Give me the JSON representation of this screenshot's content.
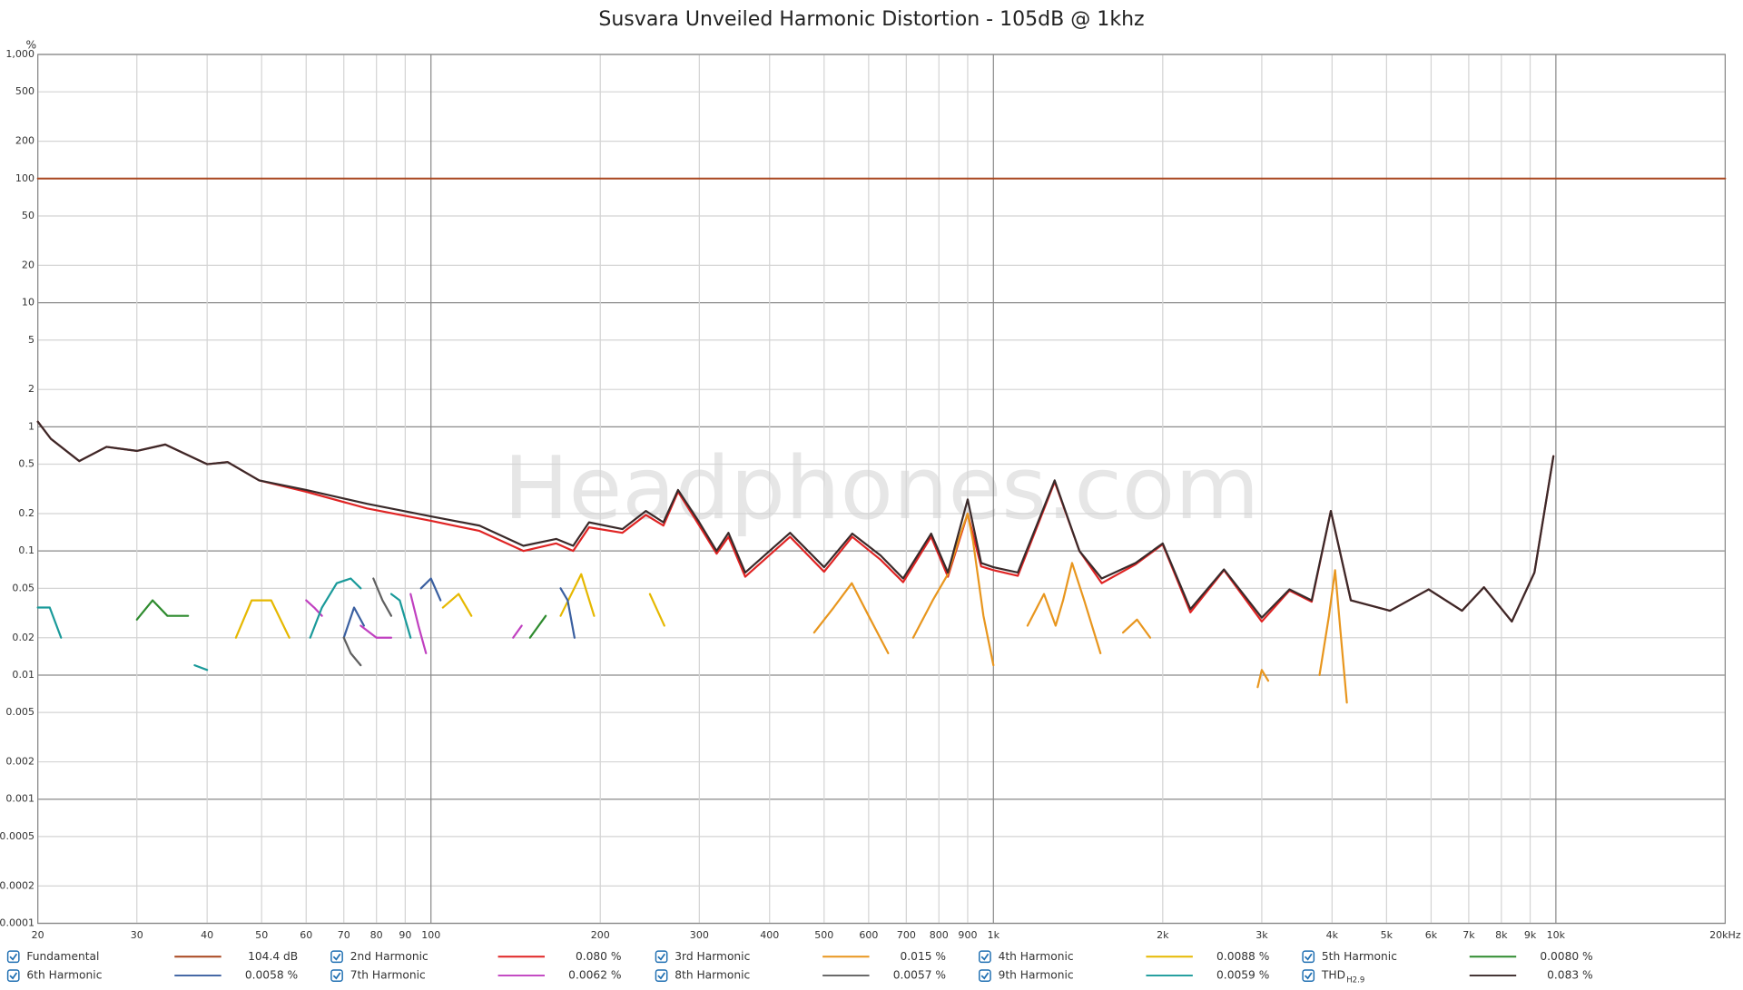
{
  "chart_data": {
    "type": "line",
    "title": "Susvara Unveiled Harmonic Distortion - 105dB @ 1khz",
    "watermark": "Headphones.com",
    "y_unit": "%",
    "log_x": true,
    "log_y": true,
    "grid": true,
    "xlim": [
      20,
      20000
    ],
    "ylim": [
      0.0001,
      1000
    ],
    "xticks": [
      20,
      30,
      40,
      50,
      60,
      70,
      80,
      90,
      100,
      200,
      300,
      400,
      500,
      600,
      700,
      800,
      900,
      {
        "value": 1000,
        "label": "1k"
      },
      {
        "value": 2000,
        "label": "2k"
      },
      {
        "value": 3000,
        "label": "3k"
      },
      {
        "value": 4000,
        "label": "4k"
      },
      {
        "value": 5000,
        "label": "5k"
      },
      {
        "value": 6000,
        "label": "6k"
      },
      {
        "value": 7000,
        "label": "7k"
      },
      {
        "value": 8000,
        "label": "8k"
      },
      {
        "value": 9000,
        "label": "9k"
      },
      {
        "value": 10000,
        "label": "10k"
      },
      {
        "value": 20000,
        "label": "20kHz"
      }
    ],
    "yticks": [
      {
        "value": 1000,
        "label": "1,000"
      },
      500,
      200,
      100,
      50,
      20,
      10,
      5,
      2,
      1,
      0.5,
      0.2,
      0.1,
      0.05,
      0.02,
      0.01,
      0.005,
      0.002,
      0.001,
      0.0005,
      0.0002,
      0.0001
    ],
    "series": [
      {
        "name": "Fundamental",
        "color": "#a8461e",
        "legend_label": "104.4 dB",
        "x": [
          20,
          20000
        ],
        "values": [
          100,
          100
        ]
      },
      {
        "name": "2nd Harmonic",
        "color": "#e02424",
        "legend_label": "0.080 %",
        "x": [
          20,
          21.1,
          23.7,
          26.5,
          30,
          33.7,
          40,
          43.5,
          49.5,
          60,
          77,
          100,
          122,
          146,
          167,
          179,
          191,
          219,
          241,
          259,
          275,
          300,
          322,
          338,
          362,
          397,
          435,
          500,
          561,
          630,
          691,
          775,
          830,
          900,
          951,
          1000,
          1105,
          1285,
          1422,
          1558,
          1790,
          2000,
          2240,
          2570,
          3000,
          3360,
          3680,
          3980,
          4320,
          5070,
          5940,
          6810,
          7450,
          8350,
          9160,
          9900
        ],
        "values": [
          1.1,
          0.8,
          0.53,
          0.69,
          0.64,
          0.72,
          0.5,
          0.52,
          0.37,
          0.3,
          0.22,
          0.175,
          0.145,
          0.1,
          0.115,
          0.1,
          0.155,
          0.14,
          0.195,
          0.16,
          0.3,
          0.16,
          0.095,
          0.13,
          0.062,
          0.09,
          0.13,
          0.068,
          0.13,
          0.085,
          0.056,
          0.13,
          0.062,
          0.2,
          0.075,
          0.07,
          0.063,
          0.36,
          0.1,
          0.055,
          0.078,
          0.113,
          0.032,
          0.07,
          0.027,
          0.048,
          0.039,
          0.21,
          0.04,
          0.033,
          0.049,
          0.033,
          0.051,
          0.027,
          0.067,
          0.58
        ]
      },
      {
        "name": "3rd Harmonic",
        "color": "#e8961e",
        "legend_label": "0.015 %",
        "x": [
          480,
          520,
          560,
          600,
          650,
          700,
          720,
          780,
          830,
          880,
          900,
          920,
          960,
          1000,
          1050,
          1150,
          1230,
          1290,
          1330,
          1380,
          1450,
          1550,
          1650,
          1700,
          1800,
          1900,
          2000,
          2950,
          3000,
          3080,
          3200,
          3800,
          3950,
          4050,
          4150,
          4250
        ],
        "values": [
          0.022,
          0.035,
          0.055,
          0.03,
          0.015,
          null,
          0.02,
          0.04,
          0.065,
          0.15,
          0.2,
          0.12,
          0.03,
          0.012,
          null,
          0.025,
          0.045,
          0.025,
          0.04,
          0.08,
          0.04,
          0.015,
          null,
          0.022,
          0.028,
          0.02,
          null,
          0.008,
          0.011,
          0.009,
          null,
          0.01,
          0.03,
          0.07,
          0.02,
          0.006
        ]
      },
      {
        "name": "4th Harmonic",
        "color": "#e6b800",
        "legend_label": "0.0088 %",
        "x": [
          45,
          48,
          52,
          56,
          60,
          105,
          112,
          118,
          125,
          170,
          185,
          195,
          200,
          245,
          260
        ],
        "values": [
          0.02,
          0.04,
          0.04,
          0.02,
          null,
          0.035,
          0.045,
          0.03,
          null,
          0.03,
          0.065,
          0.03,
          null,
          0.045,
          0.025
        ]
      },
      {
        "name": "5th Harmonic",
        "color": "#2e8b2e",
        "legend_label": "0.0080 %",
        "x": [
          30,
          32,
          34,
          37,
          40,
          150,
          160
        ],
        "values": [
          0.028,
          0.04,
          0.03,
          0.03,
          null,
          0.02,
          0.03
        ]
      },
      {
        "name": "6th Harmonic",
        "color": "#3a5fa0",
        "legend_label": "0.0058 %",
        "x": [
          70,
          73,
          76,
          80,
          96,
          100,
          104,
          110,
          170,
          175,
          180
        ],
        "values": [
          0.02,
          0.035,
          0.025,
          null,
          0.05,
          0.06,
          0.04,
          null,
          0.05,
          0.04,
          0.02
        ]
      },
      {
        "name": "7th Harmonic",
        "color": "#c040c0",
        "legend_label": "0.0062 %",
        "x": [
          60,
          62,
          64,
          66,
          75,
          80,
          85,
          88,
          92,
          95,
          98,
          100,
          140,
          145
        ],
        "values": [
          0.04,
          0.035,
          0.03,
          null,
          0.025,
          0.02,
          0.02,
          null,
          0.045,
          0.025,
          0.015,
          null,
          0.02,
          0.025
        ]
      },
      {
        "name": "8th Harmonic",
        "color": "#606060",
        "legend_label": "0.0057 %",
        "x": [
          70,
          72,
          75,
          78,
          79,
          82,
          85
        ],
        "values": [
          0.02,
          0.015,
          0.012,
          null,
          0.06,
          0.04,
          0.03
        ]
      },
      {
        "name": "9th Harmonic",
        "color": "#1a9a9a",
        "legend_label": "0.0059 %",
        "x": [
          20,
          21,
          22,
          24,
          38,
          40,
          42,
          61,
          64,
          68,
          72,
          75,
          78,
          85,
          88,
          92
        ],
        "values": [
          0.035,
          0.035,
          0.02,
          null,
          0.012,
          0.011,
          null,
          0.02,
          0.035,
          0.055,
          0.06,
          0.05,
          null,
          0.045,
          0.04,
          0.02
        ]
      },
      {
        "name": "THD",
        "name_subscript": "H2.9",
        "color": "#3a2a2a",
        "legend_label": "0.083 %",
        "x": [
          20,
          21.1,
          23.7,
          26.5,
          30,
          33.7,
          40,
          43.5,
          49.5,
          60,
          77,
          100,
          122,
          146,
          167,
          179,
          191,
          219,
          241,
          259,
          275,
          300,
          322,
          338,
          362,
          397,
          435,
          500,
          561,
          630,
          691,
          775,
          830,
          900,
          951,
          1000,
          1105,
          1285,
          1422,
          1558,
          1790,
          2000,
          2240,
          2570,
          3000,
          3360,
          3680,
          3980,
          4320,
          5070,
          5940,
          6810,
          7450,
          8350,
          9160,
          9900
        ],
        "values": [
          1.1,
          0.8,
          0.53,
          0.69,
          0.64,
          0.72,
          0.5,
          0.52,
          0.37,
          0.31,
          0.24,
          0.19,
          0.16,
          0.11,
          0.125,
          0.11,
          0.17,
          0.15,
          0.21,
          0.17,
          0.31,
          0.17,
          0.1,
          0.14,
          0.067,
          0.097,
          0.14,
          0.074,
          0.138,
          0.092,
          0.06,
          0.138,
          0.067,
          0.26,
          0.08,
          0.074,
          0.067,
          0.37,
          0.1,
          0.06,
          0.08,
          0.115,
          0.034,
          0.071,
          0.029,
          0.049,
          0.04,
          0.21,
          0.04,
          0.033,
          0.049,
          0.033,
          0.051,
          0.027,
          0.067,
          0.58
        ]
      }
    ]
  }
}
